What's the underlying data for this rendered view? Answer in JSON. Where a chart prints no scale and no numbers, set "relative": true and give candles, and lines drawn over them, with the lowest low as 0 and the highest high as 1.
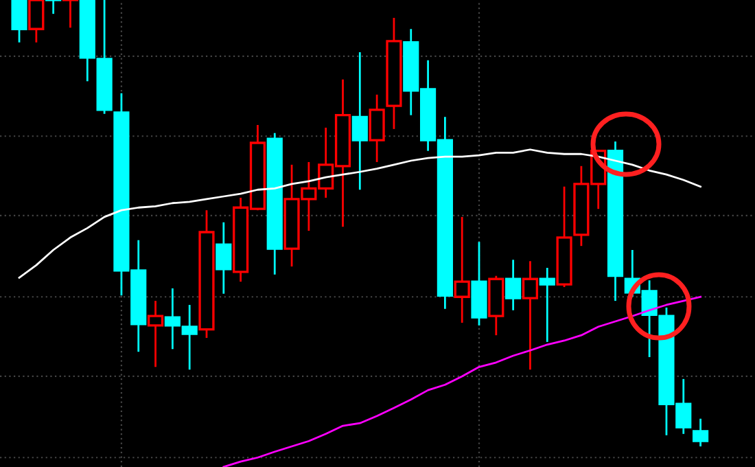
{
  "chart_data": {
    "type": "candlestick",
    "relative": true,
    "grid": true,
    "categories": [
      null,
      null,
      null,
      null,
      null,
      null,
      null,
      null,
      null,
      null,
      null,
      null,
      null,
      null,
      null,
      null,
      null,
      null,
      null,
      null,
      null,
      null,
      null,
      null,
      null,
      null,
      null,
      null,
      null,
      null,
      null,
      null,
      null,
      null,
      null,
      null,
      null,
      null,
      null,
      null,
      null
    ],
    "ohlc": [
      [
        1,
        1,
        0.905,
        0.935
      ],
      [
        0.935,
        1,
        0.905,
        1
      ],
      [
        1,
        1,
        0.969,
        1
      ],
      [
        1,
        1,
        0.938,
        1
      ],
      [
        1,
        1,
        0.818,
        0.871
      ],
      [
        0.868,
        1,
        0.745,
        0.754
      ],
      [
        0.748,
        0.791,
        0.338,
        0.394
      ],
      [
        0.394,
        0.462,
        0.212,
        0.274
      ],
      [
        0.271,
        0.326,
        0.178,
        0.292
      ],
      [
        0.289,
        0.354,
        0.218,
        0.271
      ],
      [
        0.268,
        0.317,
        0.172,
        0.252
      ],
      [
        0.262,
        0.529,
        0.243,
        0.48
      ],
      [
        0.452,
        0.502,
        0.342,
        0.397
      ],
      [
        0.391,
        0.557,
        0.369,
        0.535
      ],
      [
        0.532,
        0.72,
        0.529,
        0.68
      ],
      [
        0.689,
        0.702,
        0.385,
        0.443
      ],
      [
        0.443,
        0.631,
        0.403,
        0.554
      ],
      [
        0.554,
        0.637,
        0.483,
        0.578
      ],
      [
        0.578,
        0.714,
        0.557,
        0.631
      ],
      [
        0.628,
        0.822,
        0.492,
        0.742
      ],
      [
        0.738,
        0.883,
        0.575,
        0.686
      ],
      [
        0.686,
        0.788,
        0.637,
        0.754
      ],
      [
        0.763,
        0.96,
        0.711,
        0.908
      ],
      [
        0.905,
        0.935,
        0.742,
        0.797
      ],
      [
        0.8,
        0.865,
        0.662,
        0.686
      ],
      [
        0.686,
        0.738,
        0.308,
        0.338
      ],
      [
        0.335,
        0.514,
        0.277,
        0.369
      ],
      [
        0.369,
        0.458,
        0.271,
        0.289
      ],
      [
        0.292,
        0.382,
        0.249,
        0.375
      ],
      [
        0.375,
        0.418,
        0.305,
        0.332
      ],
      [
        0.332,
        0.415,
        0.172,
        0.375
      ],
      [
        0.375,
        0.4,
        0.234,
        0.363
      ],
      [
        0.363,
        0.582,
        0.357,
        0.468
      ],
      [
        0.474,
        0.628,
        0.449,
        0.588
      ],
      [
        0.588,
        0.662,
        0.532,
        0.662
      ],
      [
        0.662,
        0.683,
        0.326,
        0.382
      ],
      [
        0.375,
        0.44,
        0.335,
        0.345
      ],
      [
        0.348,
        0.372,
        0.2,
        0.295
      ],
      [
        0.292,
        0.311,
        0.025,
        0.095
      ],
      [
        0.095,
        0.151,
        0.028,
        0.043
      ],
      [
        0.034,
        0.062,
        0,
        0.012
      ]
    ],
    "colors": [
      "#00ffff",
      "#ff0000",
      "#00ffff",
      "#ff0000",
      "#00ffff",
      "#00ffff",
      "#00ffff",
      "#00ffff",
      "#ff0000",
      "#00ffff",
      "#00ffff",
      "#ff0000",
      "#00ffff",
      "#ff0000",
      "#ff0000",
      "#00ffff",
      "#ff0000",
      "#ff0000",
      "#ff0000",
      "#ff0000",
      "#00ffff",
      "#ff0000",
      "#ff0000",
      "#00ffff",
      "#00ffff",
      "#00ffff",
      "#ff0000",
      "#00ffff",
      "#ff0000",
      "#00ffff",
      "#ff0000",
      "#00ffff",
      "#ff0000",
      "#ff0000",
      "#ff0000",
      "#00ffff",
      "#00ffff",
      "#00ffff",
      "#00ffff",
      "#00ffff",
      "#00ffff"
    ],
    "series": [
      {
        "type": "line",
        "color": "#ffffff",
        "values": [
          0.378,
          0.406,
          0.44,
          0.468,
          0.489,
          0.514,
          0.529,
          0.535,
          0.538,
          0.545,
          0.548,
          0.554,
          0.56,
          0.566,
          0.575,
          0.578,
          0.588,
          0.594,
          0.603,
          0.609,
          0.615,
          0.622,
          0.631,
          0.64,
          0.646,
          0.649,
          0.649,
          0.652,
          0.658,
          0.658,
          0.665,
          0.658,
          0.655,
          0.655,
          0.649,
          0.64,
          0.631,
          0.618,
          0.609,
          0.597,
          0.582
        ]
      },
      {
        "type": "line",
        "color": "#ff00ff",
        "values": [
          null,
          null,
          null,
          null,
          null,
          null,
          null,
          null,
          null,
          null,
          null,
          null,
          -0.046,
          -0.034,
          -0.025,
          -0.012,
          0,
          0.012,
          0.028,
          0.046,
          0.052,
          0.068,
          0.086,
          0.105,
          0.126,
          0.138,
          0.157,
          0.178,
          0.188,
          0.203,
          0.215,
          0.228,
          0.237,
          0.249,
          0.268,
          0.28,
          0.292,
          0.305,
          0.317,
          0.326,
          0.335
        ]
      }
    ]
  }
}
